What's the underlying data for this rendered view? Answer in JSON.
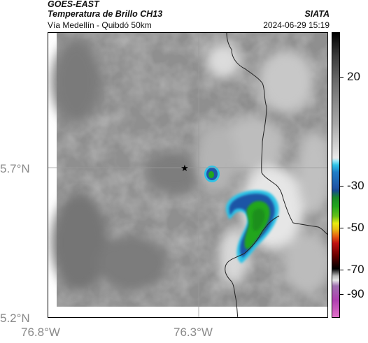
{
  "header": {
    "satellite": "GOES-EAST",
    "product": "Temperatura de Brillo CH13",
    "route": "Vía Medellín - Quibdó 50km",
    "agency": "SIATA",
    "timestamp": "2024-06-29 15:19"
  },
  "map": {
    "lat_labels": [
      "5.7°N",
      "5.2°N"
    ],
    "lon_labels": [
      "76.8°W",
      "76.3°W"
    ],
    "marker_icon": "star-icon",
    "colors": {
      "cold_core": "#22a61e",
      "cold_ring": "#1f54a6",
      "cold_edge": "#2fc3e6",
      "border_line": "#222222"
    }
  },
  "colorbar": {
    "labels": [
      "20",
      "-30",
      "-50",
      "-70",
      "-90"
    ]
  }
}
